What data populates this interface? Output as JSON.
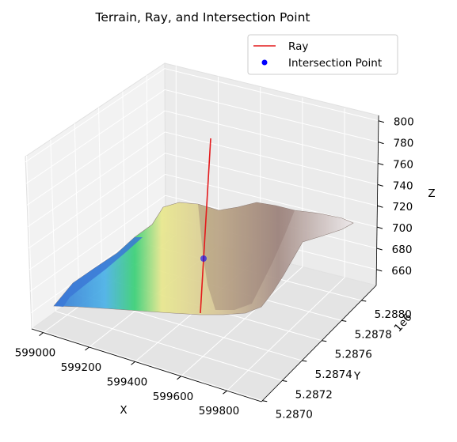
{
  "chart_data": {
    "type": "3d-surface",
    "title": "Terrain, Ray, and Intersection Point",
    "xlabel": "X",
    "ylabel": "Y",
    "zlabel": "Z",
    "y_offset_label": "1e6",
    "xlim": [
      598950,
      599950
    ],
    "ylim": [
      5.28699,
      5.28815
    ],
    "zlim": [
      645,
      805
    ],
    "x_ticks": [
      599000,
      599200,
      599400,
      599600,
      599800
    ],
    "y_ticks": [
      5.287,
      5.2872,
      5.2874,
      5.2876,
      5.2878,
      5.288
    ],
    "z_ticks": [
      660,
      680,
      700,
      720,
      740,
      760,
      780,
      800
    ],
    "legend": {
      "position": "upper right",
      "entries": [
        {
          "label": "Ray",
          "color": "#e41a1c",
          "marker": "line"
        },
        {
          "label": "Intersection Point",
          "color": "#0000ff",
          "marker": "dot"
        }
      ]
    },
    "ray": {
      "x": [
        599430,
        599430
      ],
      "y": [
        5.28745,
        5.28745
      ],
      "z": [
        655,
        790
      ]
    },
    "intersection_point": {
      "x": 599430,
      "y": 5.28745,
      "z": 704
    },
    "colormap": "terrain"
  }
}
